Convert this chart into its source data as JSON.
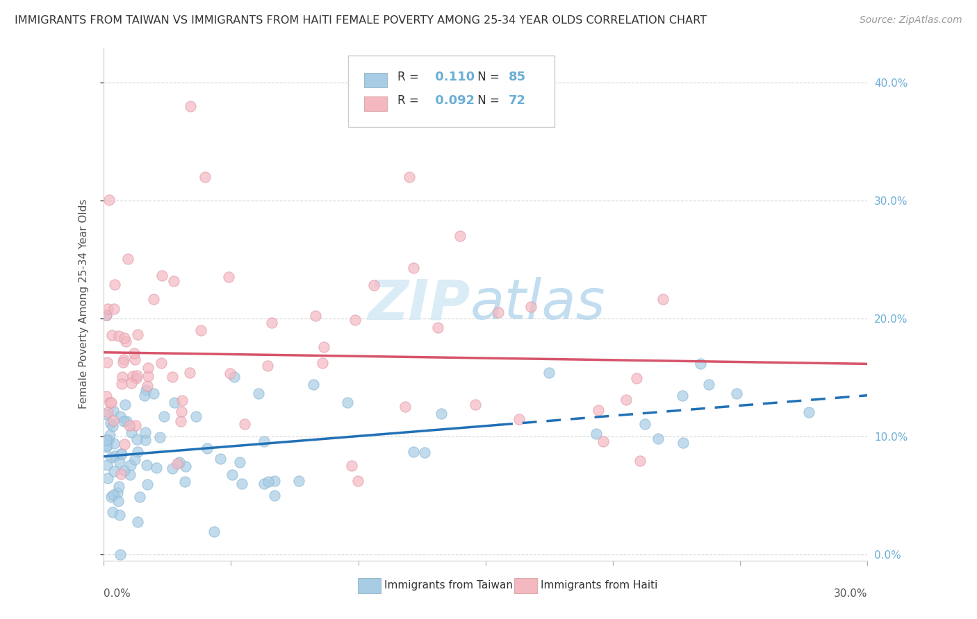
{
  "title": "IMMIGRANTS FROM TAIWAN VS IMMIGRANTS FROM HAITI FEMALE POVERTY AMONG 25-34 YEAR OLDS CORRELATION CHART",
  "source": "Source: ZipAtlas.com",
  "ylabel": "Female Poverty Among 25-34 Year Olds",
  "xlim": [
    0.0,
    0.3
  ],
  "ylim": [
    -0.005,
    0.43
  ],
  "taiwan_R": 0.11,
  "taiwan_N": 85,
  "haiti_R": 0.092,
  "haiti_N": 72,
  "taiwan_color": "#a8cce4",
  "haiti_color": "#f4b8c1",
  "taiwan_line_color": "#2171b5",
  "haiti_line_color": "#d6546a",
  "taiwan_dash_color": "#7ab0d4",
  "right_tick_color": "#6baed6",
  "watermark_color": "#d4e9f5",
  "yticks": [
    0.0,
    0.1,
    0.2,
    0.3,
    0.4
  ],
  "ytick_labels": [
    "0.0%",
    "10.0%",
    "20.0%",
    "30.0%",
    "40.0%"
  ],
  "xtick_bottom_left": "0.0%",
  "xtick_bottom_right": "30.0%"
}
